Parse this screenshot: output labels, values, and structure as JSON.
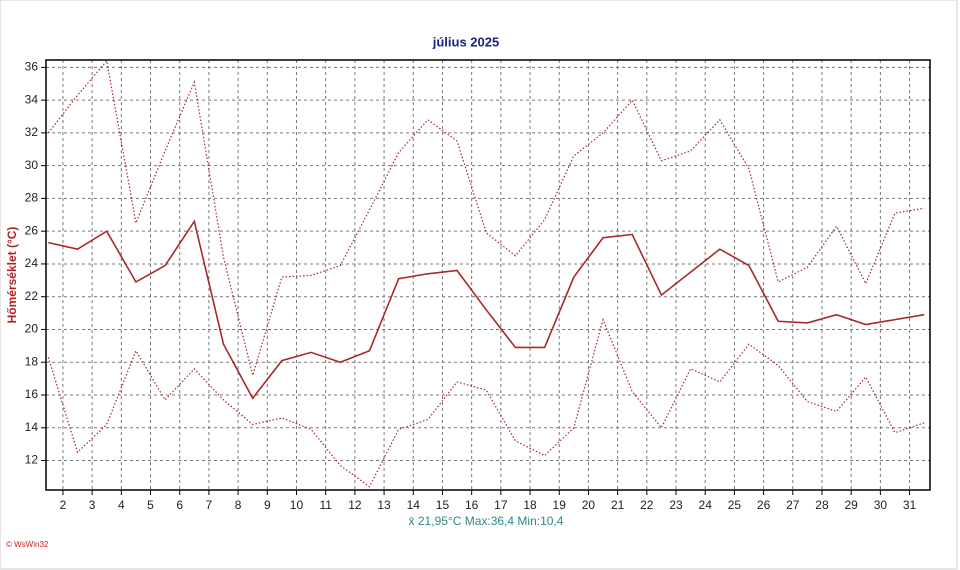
{
  "chart_data": {
    "type": "line",
    "title": "július 2025",
    "y_label": "Hőmérséklet (°C)",
    "annotation": "x̄ 21,95°C  Max:36,4  Min:10,4",
    "credit": "© WsWin32",
    "x": [
      1.5,
      2.5,
      3.5,
      4.5,
      5.5,
      6.5,
      7.5,
      8.5,
      9.5,
      10.5,
      11.5,
      12.5,
      13.5,
      14.5,
      15.5,
      16.5,
      17.5,
      18.5,
      19.5,
      20.5,
      21.5,
      22.5,
      23.5,
      24.5,
      25.5,
      26.5,
      27.5,
      28.5,
      29.5,
      30.5,
      31.5
    ],
    "series": [
      {
        "color": "#a52a2a",
        "dash": "solid",
        "values": [
          25.3,
          24.9,
          26.0,
          22.9,
          23.9,
          26.6,
          19.1,
          15.8,
          18.1,
          18.6,
          18.0,
          18.7,
          23.1,
          23.4,
          23.6,
          21.2,
          18.9,
          18.9,
          23.2,
          25.6,
          25.8,
          22.1,
          23.5,
          24.9,
          23.9,
          20.5,
          20.4,
          20.9,
          20.3,
          20.6,
          20.9
        ]
      },
      {
        "color": "#a52a2a",
        "dash": "dotted",
        "values": [
          32.0,
          34.3,
          36.4,
          26.5,
          30.9,
          35.1,
          24.4,
          17.2,
          23.2,
          23.3,
          23.9,
          27.3,
          30.8,
          32.8,
          31.5,
          25.9,
          24.5,
          26.7,
          30.6,
          32.0,
          34.0,
          30.3,
          30.9,
          32.8,
          29.8,
          22.9,
          23.8,
          26.3,
          22.8,
          27.1,
          27.4
        ]
      },
      {
        "color": "#a52a2a",
        "dash": "dotted",
        "values": [
          18.3,
          12.5,
          14.2,
          18.7,
          15.7,
          17.6,
          15.7,
          14.2,
          14.6,
          13.9,
          11.7,
          10.4,
          13.9,
          14.5,
          16.8,
          16.3,
          13.2,
          12.3,
          14.0,
          20.6,
          16.2,
          14.0,
          17.6,
          16.8,
          19.1,
          17.8,
          15.6,
          15.0,
          17.1,
          13.7,
          14.3
        ]
      }
    ],
    "xlim": [
      1.42,
      31.7
    ],
    "xticks": [
      2,
      3,
      4,
      5,
      6,
      7,
      8,
      9,
      10,
      11,
      12,
      13,
      14,
      15,
      16,
      17,
      18,
      19,
      20,
      21,
      22,
      23,
      24,
      25,
      26,
      27,
      28,
      29,
      30,
      31
    ],
    "ylim": [
      10.2,
      36.45
    ],
    "yticks": [
      12,
      14,
      16,
      18,
      20,
      22,
      24,
      26,
      28,
      30,
      32,
      34,
      36
    ],
    "grid": true
  }
}
